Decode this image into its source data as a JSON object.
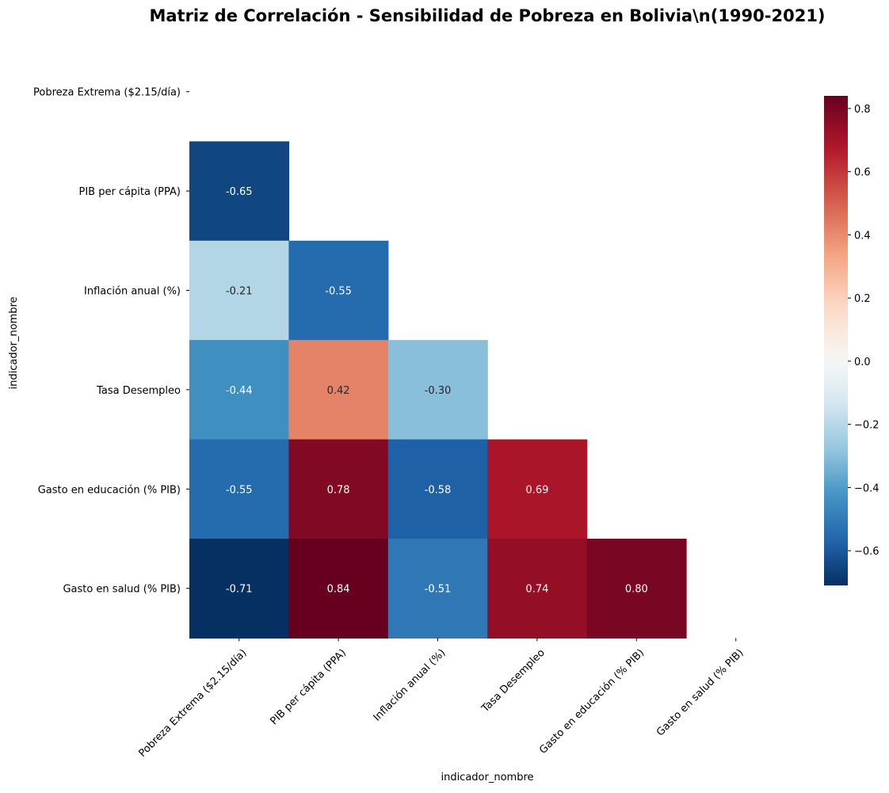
{
  "chart_data": {
    "type": "heatmap",
    "title": "Matriz de Correlación - Sensibilidad de Pobreza en Bolivia\\n(1990-2021)",
    "xlabel": "indicador_nombre",
    "ylabel": "indicador_nombre",
    "labels": [
      "Pobreza Extrema ($2.15/día)",
      "PIB per cápita (PPA)",
      "Inflación anual (%)",
      "Tasa Desempleo",
      "Gasto en educación (% PIB)",
      "Gasto en salud (% PIB)"
    ],
    "matrix": [
      [
        null,
        null,
        null,
        null,
        null,
        null
      ],
      [
        -0.65,
        null,
        null,
        null,
        null,
        null
      ],
      [
        -0.21,
        -0.55,
        null,
        null,
        null,
        null
      ],
      [
        -0.44,
        0.42,
        -0.3,
        null,
        null,
        null
      ],
      [
        -0.55,
        0.78,
        -0.58,
        0.69,
        null,
        null
      ],
      [
        -0.71,
        0.84,
        -0.51,
        0.74,
        0.8,
        null
      ]
    ],
    "annotation_format": "0.00",
    "mask": "upper-triangle-including-diagonal",
    "colormap": "RdBu_r",
    "color_range": [
      -0.71,
      0.84
    ],
    "colorbar": {
      "ticks": [
        -0.6,
        -0.4,
        -0.2,
        0.0,
        0.2,
        0.4,
        0.6,
        0.8
      ],
      "tick_labels": [
        "−0.6",
        "−0.4",
        "−0.2",
        "0.0",
        "0.2",
        "0.4",
        "0.6",
        "0.8"
      ]
    }
  }
}
